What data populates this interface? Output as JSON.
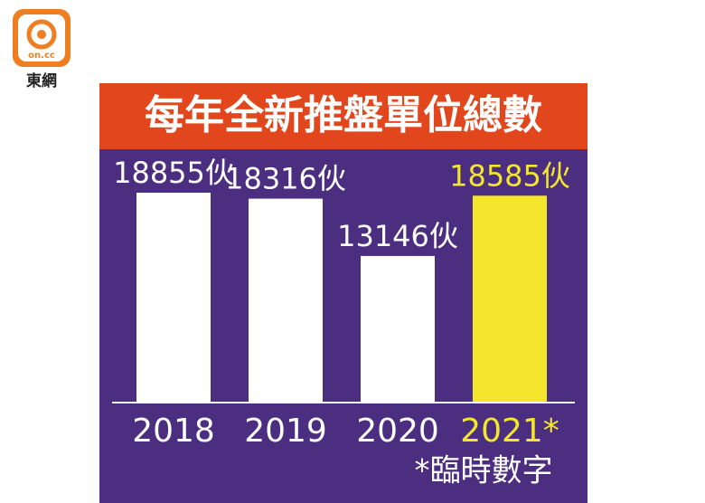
{
  "logo": {
    "brand": "on.cc",
    "name": "東網"
  },
  "chart_data": {
    "type": "bar",
    "title": "每年全新推盤單位總數",
    "categories": [
      "2018",
      "2019",
      "2020",
      "2021*"
    ],
    "values": [
      18855,
      18316,
      13146,
      18585
    ],
    "value_labels": [
      "18855伙",
      "18316伙",
      "13146伙",
      "18585伙"
    ],
    "colors": [
      "#ffffff",
      "#ffffff",
      "#ffffff",
      "#f4e62c"
    ],
    "note": "*臨時數字"
  }
}
